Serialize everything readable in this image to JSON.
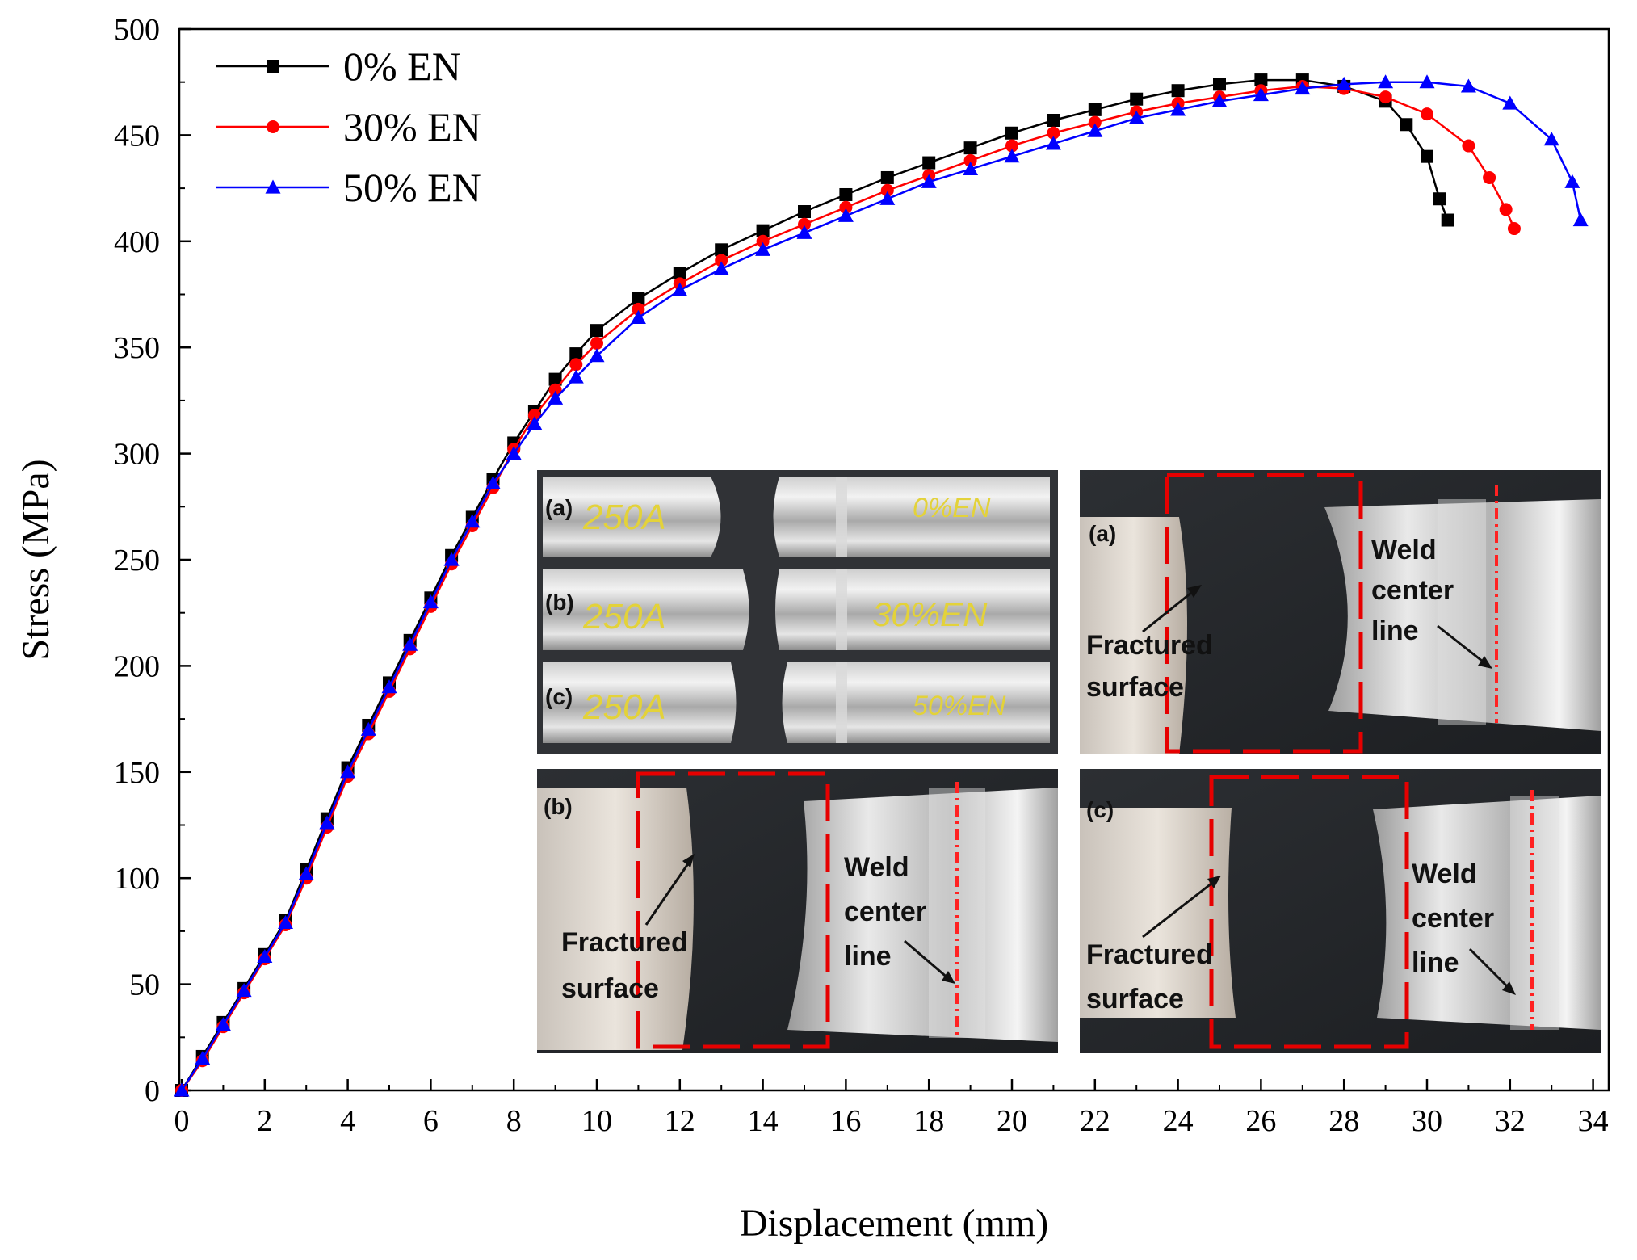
{
  "chart_data": {
    "type": "line",
    "xlabel": "Displacement (mm)",
    "ylabel": "Stress (MPa)",
    "xlim": [
      0,
      35
    ],
    "ylim": [
      0,
      500
    ],
    "xticks": [
      0,
      2,
      4,
      6,
      8,
      10,
      12,
      14,
      16,
      18,
      20,
      22,
      24,
      26,
      28,
      30,
      32,
      34
    ],
    "yticks": [
      0,
      50,
      100,
      150,
      200,
      250,
      300,
      350,
      400,
      450,
      500
    ],
    "grid": false,
    "legend_position": "top-left",
    "series": [
      {
        "name": "0% EN",
        "color": "#000000",
        "marker": "square",
        "x": [
          0,
          0.5,
          1,
          1.5,
          2,
          2.5,
          3,
          3.5,
          4,
          4.5,
          5,
          5.5,
          6,
          6.5,
          7,
          7.5,
          8,
          8.5,
          9,
          9.5,
          10,
          11,
          12,
          13,
          14,
          15,
          16,
          17,
          18,
          19,
          20,
          21,
          22,
          23,
          24,
          25,
          26,
          27,
          28,
          29,
          29.5,
          30,
          30.3,
          30.5
        ],
        "y": [
          0,
          16,
          32,
          48,
          64,
          80,
          104,
          128,
          152,
          172,
          192,
          212,
          232,
          252,
          270,
          288,
          305,
          320,
          335,
          347,
          358,
          373,
          385,
          396,
          405,
          414,
          422,
          430,
          437,
          444,
          451,
          457,
          462,
          467,
          471,
          474,
          476,
          476,
          473,
          466,
          455,
          440,
          420,
          410
        ]
      },
      {
        "name": "30% EN",
        "color": "#ff0000",
        "marker": "circle",
        "x": [
          0,
          0.5,
          1,
          1.5,
          2,
          2.5,
          3,
          3.5,
          4,
          4.5,
          5,
          5.5,
          6,
          6.5,
          7,
          7.5,
          8,
          8.5,
          9,
          9.5,
          10,
          11,
          12,
          13,
          14,
          15,
          16,
          17,
          18,
          19,
          20,
          21,
          22,
          23,
          24,
          25,
          26,
          27,
          28,
          29,
          30,
          31,
          31.5,
          31.9,
          32.1
        ],
        "y": [
          0,
          14,
          30,
          46,
          62,
          78,
          100,
          124,
          148,
          168,
          188,
          208,
          228,
          248,
          266,
          284,
          302,
          318,
          330,
          342,
          352,
          368,
          380,
          391,
          400,
          408,
          416,
          424,
          431,
          438,
          445,
          451,
          456,
          461,
          465,
          468,
          471,
          473,
          472,
          468,
          460,
          445,
          430,
          415,
          406
        ]
      },
      {
        "name": "50% EN",
        "color": "#0000ff",
        "marker": "triangle",
        "x": [
          0,
          0.5,
          1,
          1.5,
          2,
          2.5,
          3,
          3.5,
          4,
          4.5,
          5,
          5.5,
          6,
          6.5,
          7,
          7.5,
          8,
          8.5,
          9,
          9.5,
          10,
          11,
          12,
          13,
          14,
          15,
          16,
          17,
          18,
          19,
          20,
          21,
          22,
          23,
          24,
          25,
          26,
          27,
          28,
          29,
          30,
          31,
          32,
          33,
          33.5,
          33.7
        ],
        "y": [
          0,
          15,
          31,
          47,
          63,
          79,
          102,
          126,
          150,
          170,
          190,
          210,
          230,
          250,
          268,
          286,
          300,
          314,
          326,
          336,
          346,
          364,
          377,
          387,
          396,
          404,
          412,
          420,
          428,
          434,
          440,
          446,
          452,
          458,
          462,
          466,
          469,
          472,
          474,
          475,
          475,
          473,
          465,
          448,
          428,
          410
        ]
      }
    ],
    "inset_photos": [
      {
        "panel": "overview",
        "rows": [
          {
            "label": "(a)",
            "current": "250A",
            "ratio": "0%EN"
          },
          {
            "label": "(b)",
            "current": "250A",
            "ratio": "30%EN"
          },
          {
            "label": "(c)",
            "current": "250A",
            "ratio": "50%EN"
          }
        ]
      },
      {
        "panel": "(a)",
        "annotations": [
          "Weld",
          "center",
          "line",
          "Fractured",
          "surface"
        ]
      },
      {
        "panel": "(b)",
        "annotations": [
          "Weld",
          "center",
          "line",
          "Fractured",
          "surface"
        ]
      },
      {
        "panel": "(c)",
        "annotations": [
          "Weld",
          "center",
          "line",
          "Fractured",
          "surface"
        ]
      }
    ]
  }
}
